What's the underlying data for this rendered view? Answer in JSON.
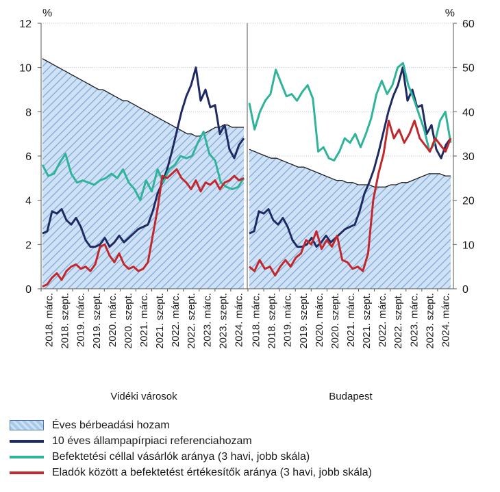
{
  "chart_data": {
    "type": "line",
    "left_unit": "%",
    "right_unit": "%",
    "left_ylim": [
      0,
      12
    ],
    "right_ylim": [
      0,
      60
    ],
    "left_ticks": [
      "0",
      "2",
      "4",
      "6",
      "8",
      "10",
      "12"
    ],
    "right_ticks": [
      "0",
      "10",
      "20",
      "30",
      "40",
      "50",
      "60"
    ],
    "x_tick_labels": [
      "2018. márc.",
      "2018. szept.",
      "2019. márc.",
      "2019. szept.",
      "2020. márc.",
      "2020. szept.",
      "2021. márc.",
      "2021. szept.",
      "2022. márc.",
      "2022. szept.",
      "2023. márc.",
      "2023. szept.",
      "2024. márc."
    ],
    "panels": [
      {
        "name": "Vidéki városok",
        "series": [
          {
            "key": "rental_yield",
            "axis": "left",
            "values": [
              10.4,
              10.3,
              10.2,
              10.1,
              10.0,
              9.9,
              9.8,
              9.7,
              9.6,
              9.5,
              9.4,
              9.3,
              9.2,
              9.1,
              9.0,
              9.0,
              8.9,
              8.8,
              8.7,
              8.6,
              8.5,
              8.5,
              8.4,
              8.3,
              8.2,
              8.1,
              8.0,
              7.9,
              7.8,
              7.7,
              7.6,
              7.5,
              7.4,
              7.3,
              7.2,
              7.1,
              7.0,
              7.0,
              6.9,
              6.9,
              7.0,
              7.1,
              7.2,
              7.3,
              7.3,
              7.4,
              7.4,
              7.3,
              7.3,
              7.3,
              7.3
            ]
          },
          {
            "key": "gov_bond",
            "axis": "left",
            "values": [
              2.5,
              2.6,
              3.5,
              3.4,
              3.6,
              3.1,
              2.9,
              3.2,
              2.8,
              2.2,
              1.9,
              1.9,
              2.0,
              2.3,
              1.9,
              2.1,
              2.4,
              2.1,
              2.3,
              2.5,
              2.7,
              2.8,
              2.9,
              3.5,
              4.3,
              4.8,
              5.4,
              6.2,
              7.1,
              8.0,
              8.7,
              9.2,
              10.0,
              8.5,
              9.0,
              8.2,
              8.3,
              7.0,
              7.4,
              6.3,
              5.9,
              6.5,
              6.8
            ]
          },
          {
            "key": "investor_buyers",
            "axis": "right",
            "values": [
              28.0,
              25.5,
              26.0,
              28.5,
              30.5,
              26.0,
              24.0,
              24.5,
              24.0,
              23.5,
              24.5,
              25.0,
              26.0,
              25.0,
              27.0,
              24.0,
              22.5,
              20.0,
              24.5,
              22.0,
              27.0,
              24.0,
              27.0,
              28.0,
              30.0,
              29.5,
              30.0,
              33.0,
              35.5,
              30.5,
              29.0,
              24.0,
              23.0,
              22.5,
              23.0,
              25.0
            ]
          },
          {
            "key": "investor_sellers",
            "axis": "right",
            "values": [
              0.5,
              1.0,
              2.5,
              3.5,
              2.0,
              4.0,
              5.0,
              5.5,
              4.5,
              5.0,
              4.0,
              5.5,
              9.5,
              10.0,
              7.5,
              6.0,
              8.0,
              5.5,
              4.5,
              5.0,
              4.0,
              4.5,
              6.0,
              12.0,
              18.0,
              25.5,
              25.0,
              26.0,
              27.0,
              25.0,
              24.0,
              22.5,
              24.5,
              22.0,
              24.0,
              23.5,
              24.5,
              22.5,
              24.0,
              24.5,
              25.5,
              24.5,
              25.0
            ]
          }
        ]
      },
      {
        "name": "Budapest",
        "series": [
          {
            "key": "rental_yield",
            "axis": "left",
            "values": [
              6.3,
              6.2,
              6.1,
              6.0,
              5.9,
              5.9,
              5.8,
              5.7,
              5.6,
              5.5,
              5.5,
              5.4,
              5.3,
              5.2,
              5.1,
              5.0,
              4.9,
              4.9,
              4.8,
              4.8,
              4.7,
              4.7,
              4.7,
              4.6,
              4.6,
              4.6,
              4.7,
              4.7,
              4.8,
              4.8,
              4.9,
              5.0,
              5.1,
              5.2,
              5.2,
              5.2,
              5.1,
              5.1
            ]
          },
          {
            "key": "gov_bond",
            "axis": "left",
            "values": [
              2.5,
              2.6,
              3.5,
              3.4,
              3.6,
              3.1,
              2.9,
              3.2,
              2.8,
              2.2,
              1.9,
              1.9,
              2.0,
              2.3,
              1.9,
              2.1,
              2.4,
              2.1,
              2.3,
              2.5,
              2.7,
              2.8,
              2.9,
              3.5,
              4.3,
              4.8,
              5.4,
              6.2,
              7.1,
              8.0,
              8.7,
              9.2,
              10.0,
              8.5,
              9.0,
              8.2,
              8.3,
              7.0,
              7.4,
              6.3,
              5.9,
              6.5,
              6.8
            ]
          },
          {
            "key": "investor_buyers",
            "axis": "right",
            "values": [
              42.0,
              36.0,
              40.0,
              42.5,
              44.0,
              49.5,
              46.5,
              43.5,
              44.0,
              42.5,
              44.5,
              46.0,
              43.0,
              31.0,
              32.0,
              29.5,
              29.0,
              31.0,
              34.0,
              33.0,
              35.0,
              32.0,
              35.0,
              38.5,
              44.0,
              47.0,
              44.0,
              46.0,
              50.0,
              51.0,
              46.0,
              43.0,
              39.5,
              36.0,
              31.0,
              33.0,
              38.0,
              40.0,
              33.0
            ]
          },
          {
            "key": "investor_sellers",
            "axis": "right",
            "values": [
              5.0,
              4.0,
              6.5,
              4.5,
              5.0,
              3.0,
              5.0,
              6.5,
              5.0,
              7.0,
              8.0,
              11.0,
              10.0,
              13.0,
              9.0,
              11.0,
              9.5,
              12.0,
              6.5,
              6.0,
              4.5,
              5.0,
              4.0,
              8.0,
              20.0,
              26.0,
              30.5,
              38.0,
              34.0,
              36.0,
              33.0,
              35.0,
              38.0,
              34.0,
              32.5,
              31.0,
              34.0,
              32.5,
              31.0,
              34.0
            ]
          }
        ]
      }
    ],
    "legend": [
      {
        "key": "rental_yield",
        "label": "Éves bérbeadási hozam",
        "style": "hatched"
      },
      {
        "key": "gov_bond",
        "label": "10 éves állampapírpiaci referenciahozam",
        "style": "line"
      },
      {
        "key": "investor_buyers",
        "label": "Befektetési céllal vásárlók aránya (3 havi, jobb skála)",
        "style": "line"
      },
      {
        "key": "investor_sellers",
        "label": "Eladók között a befektetést értékesítők aránya (3 havi, jobb skála)",
        "style": "line"
      }
    ]
  },
  "colors": {
    "rental_yield_fill": "#bcd6f0",
    "rental_yield_line": "#1a1a1a",
    "gov_bond": "#1f2a63",
    "investor_buyers": "#2fb39a",
    "investor_sellers": "#c0282d",
    "hatch": "#5d8fcf",
    "grid": "#b8c4d8"
  }
}
